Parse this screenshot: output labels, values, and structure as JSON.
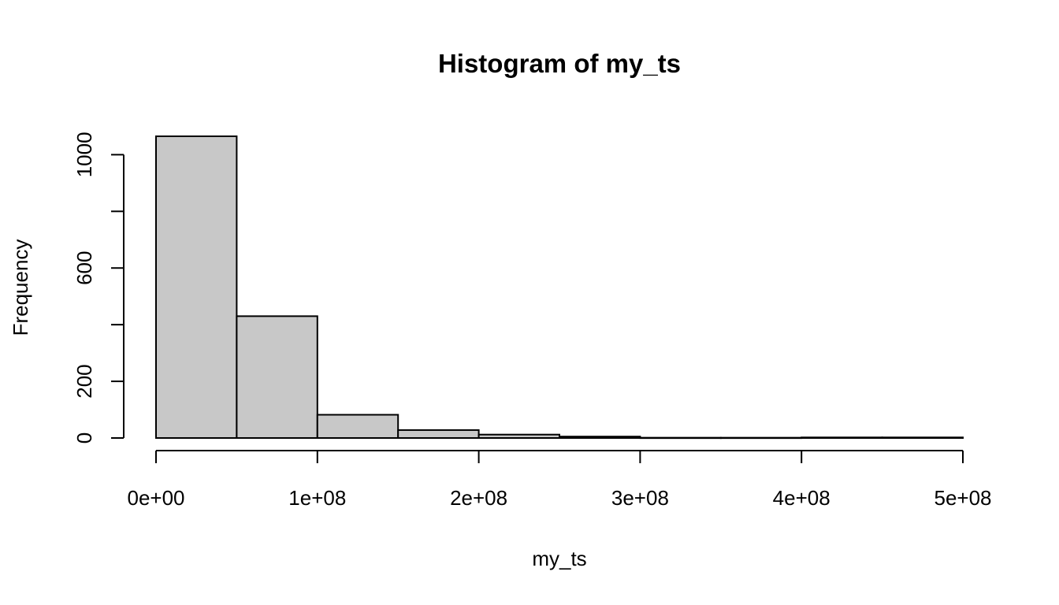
{
  "chart_data": {
    "type": "bar",
    "title": "Histogram of my_ts",
    "xlabel": "my_ts",
    "ylabel": "Frequency",
    "bin_edges": [
      0,
      50000000,
      100000000,
      150000000,
      200000000,
      250000000,
      300000000,
      350000000,
      400000000,
      450000000,
      500000000
    ],
    "values": [
      1065,
      430,
      82,
      28,
      12,
      5,
      1,
      1,
      2,
      2
    ],
    "xlim": [
      0,
      500000000
    ],
    "ylim": [
      0,
      1065
    ],
    "x_ticks": [
      0,
      100000000,
      200000000,
      300000000,
      400000000,
      500000000
    ],
    "x_tick_labels": [
      "0e+00",
      "1e+08",
      "2e+08",
      "3e+08",
      "4e+08",
      "5e+08"
    ],
    "y_ticks": [
      0,
      200,
      400,
      600,
      800,
      1000
    ],
    "y_tick_labels": [
      "0",
      "200",
      "",
      "600",
      "",
      "1000"
    ],
    "bar_color": "#c8c8c8",
    "grid": false,
    "legend": "none"
  }
}
